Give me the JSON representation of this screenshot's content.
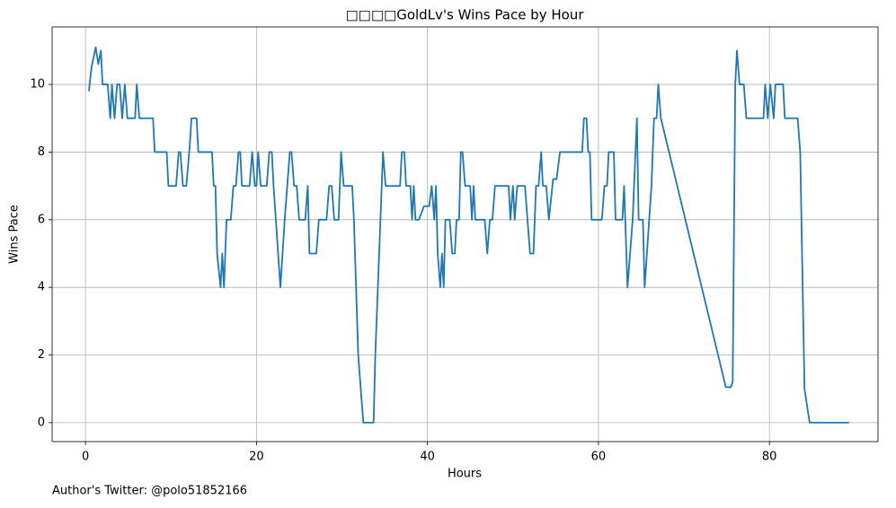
{
  "chart_data": {
    "type": "line",
    "title": "□□□□GoldLv's Wins Pace by Hour",
    "xlabel": "Hours",
    "ylabel": "Wins Pace",
    "footnote": "Author's Twitter: @polo51852166",
    "color": "#1f77b4",
    "grid": true,
    "xlim": [
      -3.9,
      92.7
    ],
    "ylim": [
      -0.56,
      11.7
    ],
    "xticks": [
      0,
      20,
      40,
      60,
      80
    ],
    "yticks": [
      0,
      2,
      4,
      6,
      8,
      10
    ],
    "x": [
      0.4,
      0.7,
      1.2,
      1.5,
      1.8,
      2,
      2.6,
      2.9,
      3.1,
      3.4,
      3.7,
      4,
      4.3,
      4.6,
      4.9,
      5.8,
      6,
      6.3,
      7.9,
      8.1,
      9.5,
      9.7,
      10.6,
      10.9,
      11.1,
      11.4,
      11.8,
      12.2,
      12.4,
      13,
      13.2,
      14.8,
      15,
      15.2,
      15.4,
      15.8,
      16,
      16.2,
      16.5,
      17,
      17.3,
      17.6,
      17.9,
      18.1,
      18.3,
      19.2,
      19.5,
      19.8,
      20,
      20.2,
      20.5,
      21.2,
      21.5,
      21.8,
      22,
      22.8,
      23.3,
      23.9,
      24.1,
      24.4,
      24.7,
      25,
      25.7,
      26,
      26.2,
      27,
      27.3,
      28.2,
      28.5,
      28.8,
      29.1,
      29.6,
      29.9,
      30.2,
      31.2,
      31.4,
      31.9,
      32.5,
      33.7,
      33.9,
      34.5,
      34.8,
      35.1,
      36.8,
      37,
      37.3,
      37.5,
      38,
      38.2,
      38.4,
      38.6,
      39,
      39.6,
      40.2,
      40.5,
      40.8,
      41,
      41.2,
      41.5,
      41.7,
      41.9,
      42.1,
      42.6,
      42.9,
      43.2,
      43.4,
      43.7,
      43.9,
      44.1,
      44.4,
      45,
      45.2,
      45.4,
      45.6,
      46.7,
      47,
      47.3,
      47.6,
      47.9,
      49.5,
      49.7,
      50,
      50.2,
      50.5,
      51.4,
      51.7,
      52,
      52.4,
      52.7,
      53,
      53.3,
      53.5,
      53.9,
      54.2,
      54.7,
      55.1,
      55.5,
      58.1,
      58.3,
      58.6,
      58.8,
      59,
      59.2,
      60.4,
      60.7,
      61,
      61.2,
      61.8,
      62,
      62.8,
      63,
      63.4,
      64,
      64.5,
      64.7,
      65.2,
      65.4,
      66.2,
      66.5,
      66.8,
      67,
      67.3,
      74.9,
      75.5,
      75.7,
      76,
      76.2,
      76.5,
      77,
      77.3,
      79.3,
      79.5,
      79.8,
      80.1,
      80.5,
      80.7,
      81.6,
      81.8,
      83.3,
      83.6,
      84.1,
      84.7,
      89.3
    ],
    "values": [
      9.8,
      10.5,
      11.1,
      10.6,
      11,
      10,
      10,
      9,
      10,
      9,
      10,
      10,
      9,
      10,
      9,
      9,
      10,
      9,
      9,
      8,
      8,
      7,
      7,
      8,
      8,
      7,
      7,
      8.2,
      9,
      9,
      8,
      8,
      7,
      7,
      5,
      4,
      5,
      4,
      6,
      6,
      7,
      7,
      8,
      8,
      7,
      7,
      8,
      7,
      7,
      8,
      7,
      7,
      8,
      8,
      7,
      4,
      6,
      8,
      8,
      7,
      7,
      6,
      6,
      7,
      5,
      5,
      6,
      6,
      7,
      7,
      6,
      6,
      8,
      7,
      7,
      6,
      2,
      0,
      0,
      2,
      6,
      8,
      7,
      7,
      8,
      8,
      7,
      7,
      6,
      7,
      6,
      6,
      6.4,
      6.4,
      7,
      6,
      7,
      5,
      4,
      5,
      4,
      6,
      6,
      5,
      5,
      6,
      6,
      8,
      8,
      7,
      7,
      6,
      7,
      6,
      6,
      5,
      6,
      6,
      7,
      7,
      6,
      7,
      6,
      7,
      7,
      6,
      5,
      5,
      7,
      7,
      8,
      7,
      7,
      6,
      7.2,
      7.2,
      8,
      8,
      9,
      9,
      8,
      8,
      6,
      6,
      7,
      7,
      8,
      8,
      6,
      6,
      7,
      4,
      6,
      9,
      6,
      6,
      4,
      7,
      9,
      9,
      10,
      9,
      1.05,
      1.05,
      1.2,
      10,
      11,
      10,
      10,
      9,
      9,
      10,
      9,
      10,
      9,
      10,
      10,
      9,
      9,
      8,
      1,
      0,
      0
    ]
  }
}
